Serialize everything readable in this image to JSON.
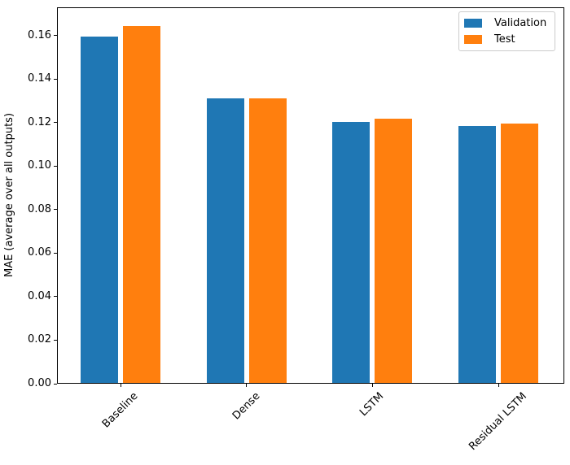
{
  "chart_data": {
    "type": "bar",
    "title": "",
    "categories": [
      "Baseline",
      "Dense",
      "LSTM",
      "Residual LSTM"
    ],
    "series": [
      {
        "name": "Validation",
        "color": "#1f77b4",
        "values": [
          0.1595,
          0.131,
          0.1203,
          0.1186
        ]
      },
      {
        "name": "Test",
        "color": "#ff7f0e",
        "values": [
          0.1645,
          0.1312,
          0.1217,
          0.1196
        ]
      }
    ],
    "xlabel": "",
    "ylabel": "MAE (average over all outputs)",
    "ylim": [
      0,
      0.173
    ],
    "yticks": [
      {
        "label": "0.00",
        "value": 0.0
      },
      {
        "label": "0.02",
        "value": 0.02
      },
      {
        "label": "0.04",
        "value": 0.04
      },
      {
        "label": "0.06",
        "value": 0.06
      },
      {
        "label": "0.08",
        "value": 0.08
      },
      {
        "label": "0.10",
        "value": 0.1
      },
      {
        "label": "0.12",
        "value": 0.12
      },
      {
        "label": "0.14",
        "value": 0.14
      },
      {
        "label": "0.16",
        "value": 0.16
      }
    ],
    "xtick_rotation_deg": 45,
    "grid": false,
    "legend": {
      "position": "upper right",
      "entries": [
        "Validation",
        "Test"
      ]
    }
  }
}
